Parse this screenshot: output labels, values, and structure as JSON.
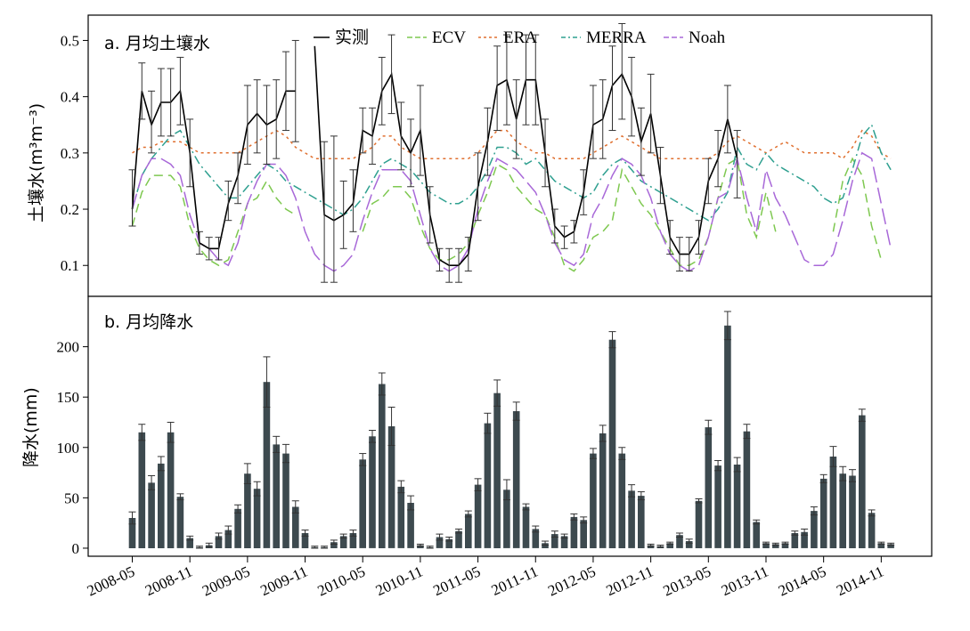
{
  "x_tick_labels": [
    "2008-05",
    "2008-11",
    "2009-05",
    "2009-11",
    "2010-05",
    "2010-11",
    "2011-05",
    "2011-11",
    "2012-05",
    "2012-11",
    "2013-05",
    "2013-11",
    "2014-05",
    "2014-11"
  ],
  "chart_data": [
    {
      "type": "line",
      "title": "a. 月均土壤水",
      "ylabel": "土壤水(m³m⁻³)",
      "ylim": [
        0.045,
        0.545
      ],
      "yticks": [
        0.1,
        0.2,
        0.3,
        0.4,
        0.5
      ],
      "ytick_labels": [
        "0.1",
        "0.2",
        "0.3",
        "0.4",
        "0.5"
      ],
      "x_start": "2008-05",
      "x_unit": "month",
      "legend_position": "top",
      "series": [
        {
          "name": "实测",
          "color": "#000000",
          "dash": "",
          "values": [
            0.2,
            0.41,
            0.35,
            0.39,
            0.39,
            0.41,
            0.3,
            0.14,
            0.13,
            0.13,
            0.21,
            0.26,
            0.35,
            0.37,
            0.35,
            0.36,
            0.41,
            0.41,
            null,
            0.49,
            0.19,
            0.18,
            0.19,
            0.21,
            0.34,
            0.33,
            0.41,
            0.44,
            0.33,
            0.3,
            0.34,
            0.19,
            0.11,
            0.1,
            0.1,
            0.12,
            0.24,
            0.32,
            0.42,
            0.43,
            0.36,
            0.43,
            0.43,
            0.3,
            0.17,
            0.15,
            0.16,
            0.23,
            0.35,
            0.36,
            0.42,
            0.44,
            0.4,
            0.32,
            0.37,
            0.26,
            0.15,
            0.12,
            0.12,
            0.15,
            0.25,
            0.29,
            0.36,
            0.29
          ]
        },
        {
          "name": "ECV",
          "color": "#7ec850",
          "dash": "10,6",
          "values": [
            0.17,
            0.23,
            0.26,
            0.26,
            0.26,
            0.24,
            0.17,
            0.13,
            0.11,
            0.1,
            0.11,
            0.16,
            0.21,
            0.22,
            0.25,
            0.22,
            0.2,
            0.19,
            null,
            null,
            null,
            null,
            null,
            null,
            0.16,
            0.21,
            0.22,
            0.24,
            0.24,
            0.22,
            0.17,
            0.13,
            0.11,
            0.11,
            0.12,
            0.14,
            0.19,
            0.23,
            0.28,
            0.27,
            0.24,
            0.22,
            0.2,
            0.19,
            0.15,
            0.1,
            0.09,
            0.11,
            0.15,
            0.16,
            0.18,
            0.27,
            0.24,
            0.21,
            0.19,
            0.16,
            0.13,
            0.1,
            0.1,
            0.11,
            0.15,
            0.22,
            0.28,
            0.29,
            0.19,
            0.15,
            0.23,
            0.16,
            null,
            null,
            null,
            null,
            null,
            0.16,
            0.25,
            0.29,
            0.26,
            0.17,
            0.11
          ]
        },
        {
          "name": "ERA",
          "color": "#e07030",
          "dash": "3,4",
          "values": [
            0.3,
            0.31,
            0.31,
            0.32,
            0.32,
            0.32,
            0.31,
            0.3,
            0.3,
            0.3,
            0.3,
            0.3,
            0.31,
            0.32,
            0.33,
            0.34,
            0.33,
            0.31,
            0.3,
            0.29,
            0.29,
            0.29,
            0.29,
            0.29,
            0.3,
            0.31,
            0.33,
            0.33,
            0.31,
            0.3,
            0.29,
            0.29,
            0.29,
            0.29,
            0.29,
            0.29,
            0.3,
            0.32,
            0.34,
            0.34,
            0.32,
            0.31,
            0.3,
            0.3,
            0.29,
            0.29,
            0.29,
            0.29,
            0.3,
            0.31,
            0.32,
            0.33,
            0.32,
            0.31,
            0.3,
            0.29,
            0.29,
            0.29,
            0.29,
            0.29,
            0.29,
            0.3,
            0.32,
            0.33,
            0.32,
            0.31,
            0.3,
            0.31,
            0.32,
            0.31,
            0.3,
            0.3,
            0.3,
            0.3,
            0.29,
            0.31,
            0.34,
            0.33,
            0.3,
            0.29
          ]
        },
        {
          "name": "MERRA",
          "color": "#2fa090",
          "dash": "10,4,2,4",
          "values": [
            0.2,
            0.26,
            0.29,
            0.31,
            0.33,
            0.34,
            0.31,
            0.28,
            0.26,
            0.24,
            0.22,
            0.22,
            0.24,
            0.26,
            0.28,
            0.27,
            0.25,
            0.24,
            0.23,
            0.22,
            0.21,
            0.2,
            0.19,
            0.2,
            0.22,
            0.25,
            0.28,
            0.29,
            0.28,
            0.27,
            0.25,
            0.23,
            0.22,
            0.21,
            0.21,
            0.22,
            0.24,
            0.27,
            0.31,
            0.31,
            0.3,
            0.28,
            0.29,
            0.27,
            0.25,
            0.24,
            0.23,
            0.22,
            0.23,
            0.26,
            0.28,
            0.29,
            0.27,
            0.25,
            0.24,
            0.23,
            0.22,
            0.21,
            0.2,
            0.19,
            0.18,
            0.2,
            0.23,
            0.31,
            0.28,
            0.27,
            0.3,
            0.28,
            0.27,
            0.26,
            0.25,
            0.24,
            0.22,
            0.21,
            0.22,
            0.27,
            0.33,
            0.35,
            0.3,
            0.27
          ]
        },
        {
          "name": "Noah",
          "color": "#a868d8",
          "dash": "18,6",
          "values": [
            0.2,
            0.26,
            0.29,
            0.29,
            0.28,
            0.26,
            0.19,
            0.14,
            0.13,
            0.11,
            0.1,
            0.14,
            0.21,
            0.25,
            0.28,
            0.28,
            0.26,
            0.22,
            0.16,
            0.12,
            0.1,
            0.09,
            0.1,
            0.12,
            0.18,
            0.23,
            0.27,
            0.27,
            0.27,
            0.25,
            0.19,
            0.13,
            0.1,
            0.09,
            0.1,
            0.13,
            0.2,
            0.25,
            0.29,
            0.28,
            0.27,
            0.25,
            0.23,
            0.19,
            0.14,
            0.11,
            0.1,
            0.12,
            0.19,
            0.22,
            0.26,
            0.29,
            0.28,
            0.26,
            0.22,
            0.16,
            0.12,
            0.1,
            0.09,
            0.1,
            0.15,
            0.22,
            0.23,
            0.29,
            0.22,
            0.16,
            0.27,
            0.22,
            0.19,
            0.15,
            0.11,
            0.1,
            0.1,
            0.12,
            0.18,
            0.25,
            0.3,
            0.29,
            0.21,
            0.13
          ]
        }
      ],
      "error_bars": {
        "series": "实测",
        "months": [
          0,
          1,
          2,
          3,
          4,
          5,
          6,
          7,
          8,
          9,
          10,
          11,
          12,
          13,
          14,
          15,
          16,
          17,
          20,
          21,
          22,
          23,
          24,
          25,
          26,
          27,
          28,
          29,
          30,
          31,
          32,
          33,
          34,
          35,
          36,
          37,
          38,
          39,
          40,
          41,
          42,
          43,
          44,
          45,
          46,
          47,
          48,
          49,
          50,
          51,
          52,
          53,
          54,
          55,
          56,
          57,
          58,
          59,
          60,
          61,
          62,
          63
        ],
        "low": [
          0.17,
          0.36,
          0.3,
          0.33,
          0.33,
          0.35,
          0.24,
          0.12,
          0.11,
          0.11,
          0.18,
          0.21,
          0.28,
          0.3,
          0.28,
          0.29,
          0.34,
          0.32,
          0.07,
          0.07,
          0.13,
          0.16,
          0.3,
          0.28,
          0.35,
          0.37,
          0.27,
          0.24,
          0.26,
          0.14,
          0.09,
          0.07,
          0.07,
          0.09,
          0.18,
          0.26,
          0.34,
          0.35,
          0.29,
          0.35,
          0.35,
          0.24,
          0.14,
          0.13,
          0.14,
          0.19,
          0.29,
          0.29,
          0.34,
          0.36,
          0.33,
          0.26,
          0.3,
          0.21,
          0.12,
          0.09,
          0.09,
          0.12,
          0.21,
          0.24,
          0.3,
          0.22
        ],
        "high": [
          0.27,
          0.46,
          0.41,
          0.45,
          0.45,
          0.47,
          0.36,
          0.16,
          0.15,
          0.15,
          0.25,
          0.3,
          0.42,
          0.43,
          0.42,
          0.43,
          0.48,
          0.5,
          0.32,
          0.33,
          0.25,
          0.27,
          0.38,
          0.38,
          0.47,
          0.51,
          0.39,
          0.36,
          0.42,
          0.24,
          0.13,
          0.13,
          0.13,
          0.15,
          0.3,
          0.38,
          0.49,
          0.51,
          0.43,
          0.51,
          0.51,
          0.36,
          0.2,
          0.17,
          0.18,
          0.27,
          0.42,
          0.43,
          0.49,
          0.53,
          0.47,
          0.38,
          0.44,
          0.31,
          0.18,
          0.15,
          0.15,
          0.18,
          0.29,
          0.34,
          0.42,
          0.34
        ]
      }
    },
    {
      "type": "bar",
      "title": "b. 月均降水",
      "ylabel": "降水(mm)",
      "ylim": [
        -8,
        250
      ],
      "yticks": [
        0,
        50,
        100,
        150,
        200
      ],
      "ytick_labels": [
        "0",
        "50",
        "100",
        "150",
        "200"
      ],
      "x_start": "2008-05",
      "x_unit": "month",
      "bar_color": "#3d4a4f",
      "values": [
        30,
        115,
        65,
        84,
        115,
        51,
        10,
        1,
        3,
        12,
        18,
        39,
        74,
        59,
        165,
        103,
        94,
        41,
        15,
        1,
        1,
        6,
        12,
        15,
        88,
        111,
        163,
        121,
        61,
        45,
        3,
        1,
        11,
        9,
        17,
        34,
        63,
        124,
        154,
        58,
        136,
        41,
        19,
        5,
        14,
        12,
        31,
        28,
        94,
        114,
        207,
        94,
        57,
        52,
        3,
        2,
        5,
        13,
        7,
        47,
        120,
        82,
        221,
        83,
        116,
        26,
        5,
        4,
        5,
        15,
        16,
        37,
        69,
        91,
        74,
        72,
        132,
        35,
        5,
        4
      ],
      "errors": [
        6,
        8,
        7,
        7,
        10,
        3,
        2,
        1,
        2,
        3,
        4,
        4,
        10,
        7,
        25,
        8,
        9,
        6,
        3,
        1,
        1,
        2,
        2,
        3,
        6,
        6,
        11,
        19,
        6,
        7,
        1,
        1,
        3,
        2,
        2,
        3,
        6,
        10,
        13,
        10,
        9,
        3,
        3,
        2,
        3,
        2,
        3,
        3,
        5,
        8,
        8,
        6,
        6,
        4,
        1,
        1,
        1,
        2,
        2,
        2,
        7,
        5,
        14,
        7,
        7,
        2,
        1,
        1,
        1,
        2,
        3,
        4,
        4,
        10,
        7,
        6,
        6,
        3,
        1,
        1
      ]
    }
  ]
}
